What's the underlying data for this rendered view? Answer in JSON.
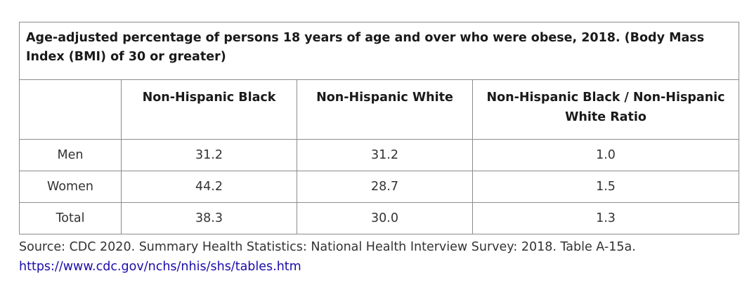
{
  "table": {
    "caption": "Age-adjusted percentage of persons 18 years of age and over who were obese, 2018. (Body Mass Index (BMI) of 30 or greater)",
    "headers": [
      "",
      "Non-Hispanic Black",
      "Non-Hispanic White",
      "Non-Hispanic Black / Non-Hispanic White Ratio"
    ],
    "rows": [
      {
        "label": "Men",
        "black": "31.2",
        "white": "31.2",
        "ratio": "1.0"
      },
      {
        "label": "Women",
        "black": "44.2",
        "white": "28.7",
        "ratio": "1.5"
      },
      {
        "label": "Total",
        "black": "38.3",
        "white": "30.0",
        "ratio": "1.3"
      }
    ]
  },
  "source": {
    "text": "Source: CDC 2020. Summary Health Statistics: National Health Interview Survey: 2018. Table A-15a.",
    "link": "https://www.cdc.gov/nchs/nhis/shs/tables.htm"
  },
  "colors": {
    "border": "#8c8c8c",
    "link": "#1a0dab",
    "text": "#222222"
  }
}
